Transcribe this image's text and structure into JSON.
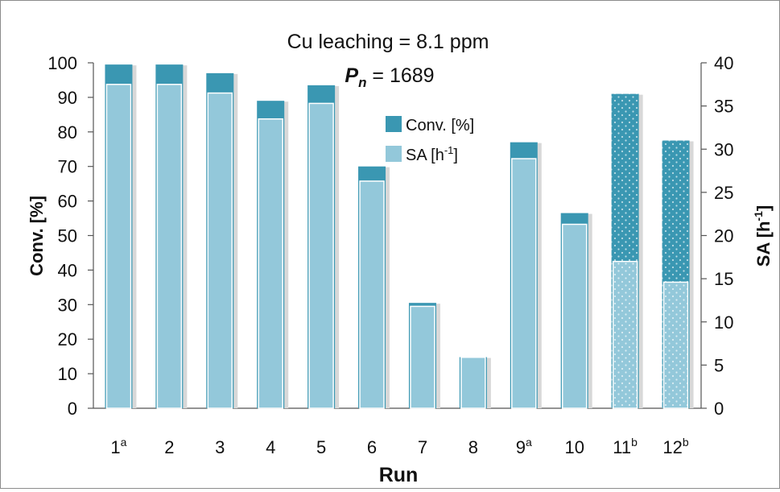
{
  "chart_data": {
    "type": "bar",
    "annotations": {
      "line1": "Cu leaching = 8.1 ppm",
      "line2_symbol": "P",
      "line2_subscript": "n",
      "line2_value": " = 1689"
    },
    "xlabel": "Run",
    "ylabel_left": "Conv. [%]",
    "ylabel_right": "SA [h",
    "ylabel_right_sup": "-1",
    "ylabel_right_close": "]",
    "ylim_left": [
      0,
      100
    ],
    "ylim_right": [
      0,
      40
    ],
    "yticks_left": [
      "0",
      "10",
      "20",
      "30",
      "40",
      "50",
      "60",
      "70",
      "80",
      "90",
      "100"
    ],
    "yticks_right": [
      "0",
      "5",
      "10",
      "15",
      "20",
      "25",
      "30",
      "35",
      "40"
    ],
    "categories": [
      {
        "label": "1",
        "sup": "a"
      },
      {
        "label": "2",
        "sup": ""
      },
      {
        "label": "3",
        "sup": ""
      },
      {
        "label": "4",
        "sup": ""
      },
      {
        "label": "5",
        "sup": ""
      },
      {
        "label": "6",
        "sup": ""
      },
      {
        "label": "7",
        "sup": ""
      },
      {
        "label": "8",
        "sup": ""
      },
      {
        "label": "9",
        "sup": "a"
      },
      {
        "label": "10",
        "sup": ""
      },
      {
        "label": "11",
        "sup": "b"
      },
      {
        "label": "12",
        "sup": "b"
      }
    ],
    "hatched": [
      false,
      false,
      false,
      false,
      false,
      false,
      false,
      false,
      false,
      false,
      true,
      true
    ],
    "series": [
      {
        "name": "Conv. [%]",
        "axis": "left",
        "color": "#3a97b2",
        "values": [
          99.5,
          99.5,
          97,
          89,
          93.5,
          70,
          30.5,
          14.8,
          77,
          56.5,
          91,
          77.5
        ]
      },
      {
        "name": "SA [h",
        "name_sup": "-1",
        "name_close": "]",
        "axis": "right",
        "color": "#93c8da",
        "values": [
          37.5,
          37.5,
          36.5,
          33.5,
          35.3,
          26.3,
          11.8,
          5.9,
          28.9,
          21.3,
          17,
          14.6
        ]
      }
    ],
    "legend_position": "top-center",
    "grid": false
  }
}
